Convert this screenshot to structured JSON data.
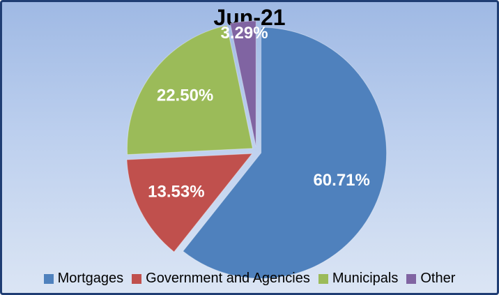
{
  "chart_data": {
    "type": "pie",
    "title": "Jun-21",
    "categories": [
      "Mortgages",
      "Government and Agencies",
      "Municipals",
      "Other"
    ],
    "values": [
      60.71,
      13.53,
      22.5,
      3.29
    ],
    "value_labels": [
      "60.71%",
      "13.53%",
      "22.50%",
      "3.29%"
    ],
    "colors": [
      "#4f81bd",
      "#c0504d",
      "#9bbb59",
      "#8064a2"
    ],
    "legend": "bottom"
  }
}
